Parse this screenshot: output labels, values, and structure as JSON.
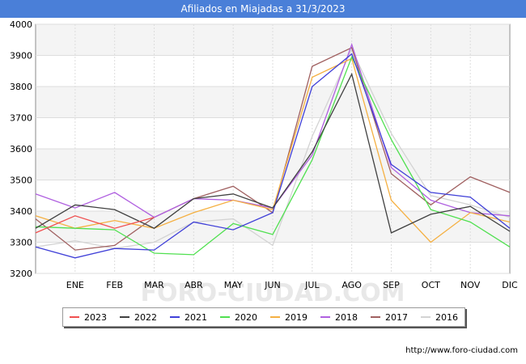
{
  "title": "Afiliados en Miajadas a 31/3/2023",
  "footer": "http://www.foro-ciudad.com",
  "watermark": "FORO-CIUDAD.COM",
  "chart_data": {
    "type": "line",
    "title": "Afiliados en Miajadas a 31/3/2023",
    "xlabel": "",
    "ylabel": "",
    "categories": [
      "",
      "ENE",
      "FEB",
      "MAR",
      "ABR",
      "MAY",
      "JUN",
      "JUL",
      "AGO",
      "SEP",
      "OCT",
      "NOV",
      "DIC"
    ],
    "ylim": [
      3200,
      4000
    ],
    "yticks": [
      3200,
      3300,
      3400,
      3500,
      3600,
      3700,
      3800,
      3900,
      4000
    ],
    "grid": true,
    "legend_position": "bottom",
    "series": [
      {
        "name": "2016",
        "color": "#d3d3d3",
        "values": [
          3285,
          3305,
          3280,
          3300,
          3365,
          3375,
          3290,
          3640,
          3920,
          3650,
          3450,
          3420,
          3380
        ]
      },
      {
        "name": "2017",
        "color": "#a06060",
        "values": [
          3375,
          3275,
          3290,
          3380,
          3440,
          3480,
          3395,
          3865,
          3925,
          3520,
          3420,
          3510,
          3460
        ]
      },
      {
        "name": "2018",
        "color": "#b060e0",
        "values": [
          3455,
          3410,
          3460,
          3380,
          3440,
          3435,
          3410,
          3580,
          3935,
          3540,
          3435,
          3395,
          3385
        ]
      },
      {
        "name": "2019",
        "color": "#f5b042",
        "values": [
          3385,
          3345,
          3370,
          3345,
          3395,
          3435,
          3405,
          3830,
          3890,
          3435,
          3300,
          3395,
          3365
        ]
      },
      {
        "name": "2020",
        "color": "#50e050",
        "values": [
          3350,
          3345,
          3340,
          3265,
          3260,
          3360,
          3325,
          3565,
          3895,
          3630,
          3405,
          3365,
          3285
        ]
      },
      {
        "name": "2021",
        "color": "#4040d8",
        "values": [
          3285,
          3250,
          3280,
          3275,
          3365,
          3340,
          3395,
          3800,
          3905,
          3550,
          3460,
          3445,
          3345
        ]
      },
      {
        "name": "2022",
        "color": "#404040",
        "values": [
          3345,
          3420,
          3405,
          3345,
          3440,
          3455,
          3410,
          3590,
          3840,
          3330,
          3390,
          3415,
          3335
        ]
      },
      {
        "name": "2023",
        "color": "#f05050",
        "values": [
          3330,
          3385,
          3345,
          3380,
          null,
          null,
          null,
          null,
          null,
          null,
          null,
          null,
          null
        ]
      }
    ],
    "legend_order": [
      "2023",
      "2022",
      "2021",
      "2020",
      "2019",
      "2018",
      "2017",
      "2016"
    ]
  }
}
